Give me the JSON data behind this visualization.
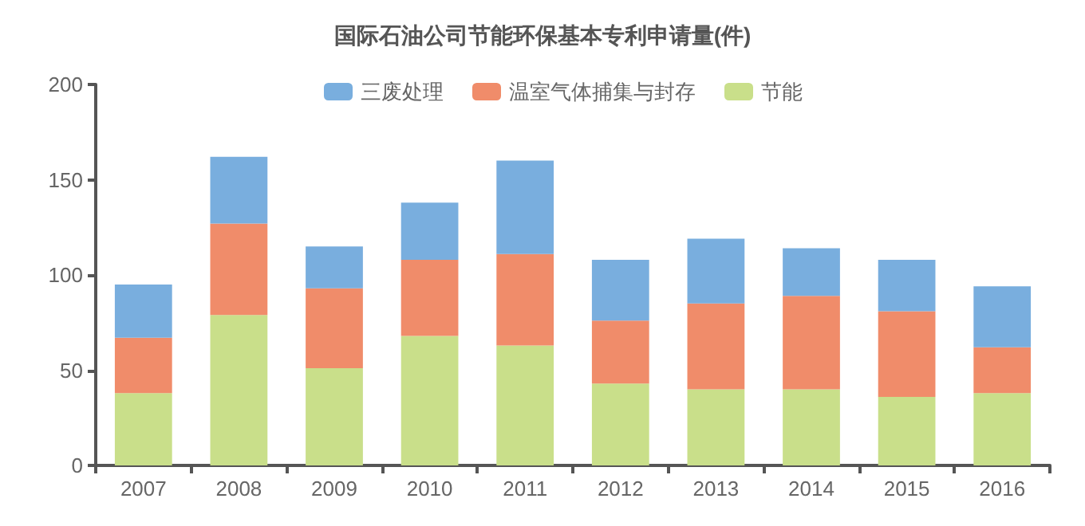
{
  "chart_data": {
    "type": "bar",
    "title": "国际石油公司节能环保基本专利申请量(件)",
    "stacked": true,
    "categories": [
      "2007",
      "2008",
      "2009",
      "2010",
      "2011",
      "2012",
      "2013",
      "2014",
      "2015",
      "2016"
    ],
    "series": [
      {
        "name": "节能",
        "color": "#c9df8a",
        "values": [
          38,
          79,
          51,
          68,
          63,
          43,
          40,
          40,
          36,
          38
        ]
      },
      {
        "name": "温室气体捕集与封存",
        "color": "#f08c6a",
        "values": [
          29,
          48,
          42,
          40,
          48,
          33,
          45,
          49,
          45,
          24
        ]
      },
      {
        "name": "三废处理",
        "color": "#79aede",
        "values": [
          28,
          35,
          22,
          30,
          49,
          32,
          34,
          25,
          27,
          32
        ]
      }
    ],
    "ylim": [
      0,
      200
    ],
    "yticks": [
      0,
      50,
      100,
      150,
      200
    ],
    "grid": false,
    "legend": "top"
  }
}
